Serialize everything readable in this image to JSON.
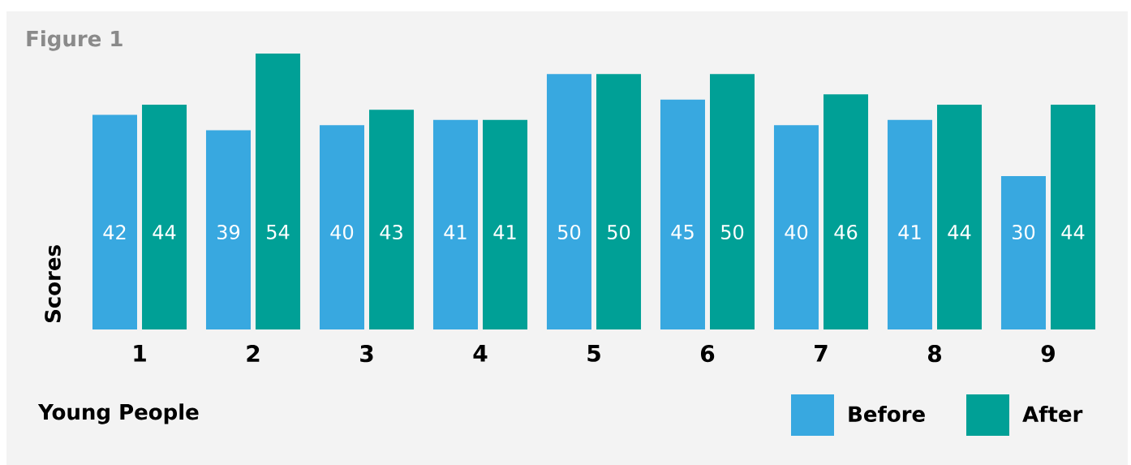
{
  "chart_data": {
    "type": "bar",
    "title": "Figure 1",
    "xlabel": "Young People",
    "ylabel": "Scores",
    "categories": [
      "1",
      "2",
      "3",
      "4",
      "5",
      "6",
      "7",
      "8",
      "9"
    ],
    "series": [
      {
        "name": "Before",
        "color": "#38a8e0",
        "values": [
          42,
          39,
          40,
          41,
          50,
          45,
          40,
          41,
          30
        ]
      },
      {
        "name": "After",
        "color": "#00a096",
        "values": [
          44,
          54,
          43,
          41,
          50,
          50,
          46,
          44,
          44
        ]
      }
    ],
    "data_labels": true,
    "legend": "bottom right"
  }
}
